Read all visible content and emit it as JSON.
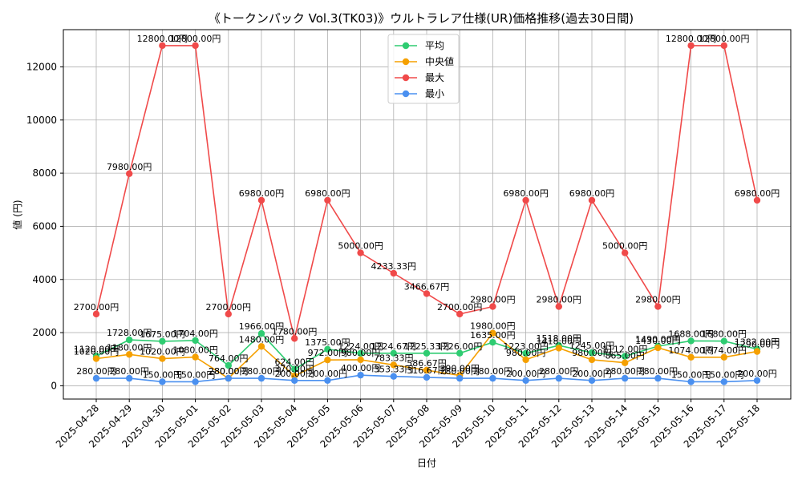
{
  "chart_data": {
    "type": "line",
    "title": "《トークンパック Vol.3(TK03)》ウルトラレア仕様(UR)価格推移(過去30日間)",
    "xlabel": "日付",
    "ylabel": "値 (円)",
    "categories": [
      "2025-04-28",
      "2025-04-29",
      "2025-04-30",
      "2025-05-01",
      "2025-05-02",
      "2025-05-03",
      "2025-05-04",
      "2025-05-05",
      "2025-05-06",
      "2025-05-07",
      "2025-05-08",
      "2025-05-09",
      "2025-05-10",
      "2025-05-11",
      "2025-05-12",
      "2025-05-13",
      "2025-05-14",
      "2025-05-15",
      "2025-05-16",
      "2025-05-17",
      "2025-05-18"
    ],
    "ylim": [
      -500,
      13400
    ],
    "yticks": [
      0,
      2000,
      4000,
      6000,
      8000,
      10000,
      12000
    ],
    "grid": true,
    "legend_position": "top-center",
    "series": [
      {
        "name": "平均",
        "color": "#2ecc71",
        "values": [
          1120,
          1728,
          1675,
          1704,
          764,
          1966,
          624,
          1375,
          1224,
          1224.67,
          1225.33,
          1226,
          1635,
          1223,
          1518,
          1245,
          1112,
          1490,
          1688,
          1680,
          1382
        ],
        "labels": [
          "1120.00円",
          "1728.00円",
          "1675.00円",
          "1704.00円",
          "764.00円",
          "1966.00円",
          "624.00円",
          "1375.00円",
          "1224.00円",
          "1224.67円",
          "1225.33円",
          "1226.00円",
          "1635.00円",
          "1223.00円",
          "1518.00円",
          "1245.00円",
          "1112.00円",
          "1490.00円",
          "1688.00円",
          "1680.00円",
          "1382.00円"
        ]
      },
      {
        "name": "中央値",
        "color": "#f5a000",
        "values": [
          1020,
          1180,
          1020,
          1080,
          280,
          1480,
          370,
          972,
          980,
          783.33,
          586.67,
          390,
          1980,
          980,
          1418,
          980,
          865,
          1430,
          1074,
          1074,
          1290
        ],
        "labels": [
          "1020.00円",
          "1180.00円",
          "1020.00円",
          "1080.00円",
          "280.00円",
          "1480.00円",
          "370.00円",
          "972.00円",
          "980.00円",
          "783.33円",
          "586.67円",
          "390.00円",
          "1980.00円",
          "980.00円",
          "1418.00円",
          "980.00円",
          "865.00円",
          "1430.00円",
          "1074.00円",
          "1074.00円",
          "1290.00円"
        ]
      },
      {
        "name": "最大",
        "color": "#f04a4a",
        "values": [
          2700,
          7980,
          12800,
          12800,
          2700,
          6980,
          1780,
          6980,
          5000,
          4233.33,
          3466.67,
          2700,
          2980,
          6980,
          2980,
          6980,
          5000,
          2980,
          12800,
          12800,
          6980
        ],
        "labels": [
          "2700.00円",
          "7980.00円",
          "12800.00円",
          "12800.00円",
          "2700.00円",
          "6980.00円",
          "1780.00円",
          "6980.00円",
          "5000.00円",
          "4233.33円",
          "3466.67円",
          "2700.00円",
          "2980.00円",
          "6980.00円",
          "2980.00円",
          "6980.00円",
          "5000.00円",
          "2980.00円",
          "12800.00円",
          "12800.00円",
          "6980.00円"
        ]
      },
      {
        "name": "最小",
        "color": "#4a90f0",
        "values": [
          280,
          280,
          150,
          150,
          280,
          280,
          200,
          200,
          400,
          353.33,
          316.67,
          280,
          280,
          200,
          280,
          200,
          280,
          280,
          150,
          150,
          200
        ],
        "labels": [
          "280.00円",
          "280.00円",
          "150.00円",
          "150.00円",
          "280.00円",
          "280.00円",
          "200.00円",
          "200.00円",
          "400.00円",
          "353.33円",
          "316.67円",
          "280.00円",
          "280.00円",
          "200.00円",
          "280.00円",
          "200.00円",
          "280.00円",
          "280.00円",
          "150.00円",
          "150.00円",
          "200.00円"
        ]
      }
    ]
  }
}
